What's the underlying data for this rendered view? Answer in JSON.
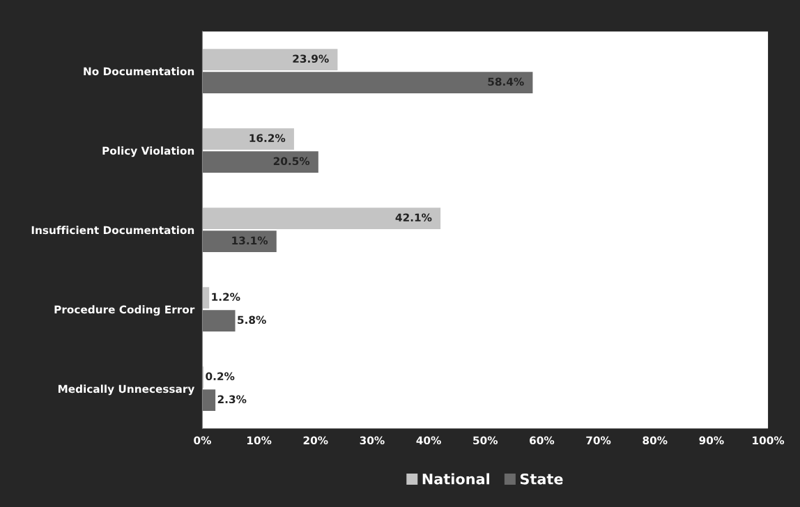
{
  "chart_data": {
    "type": "bar",
    "orientation": "horizontal",
    "categories": [
      "No Documentation",
      "Policy Violation",
      "Insufficient Documentation",
      "Procedure Coding Error",
      "Medically Unnecessary"
    ],
    "series": [
      {
        "name": "National",
        "color": "#c4c4c4",
        "values": [
          23.9,
          16.2,
          42.1,
          1.2,
          0.2
        ],
        "value_labels": [
          "23.9%",
          "16.2%",
          "42.1%",
          "1.2%",
          "0.2%"
        ]
      },
      {
        "name": "State",
        "color": "#6a6a6a",
        "values": [
          58.4,
          20.5,
          13.1,
          5.8,
          2.3
        ],
        "value_labels": [
          "58.4%",
          "20.5%",
          "13.1%",
          "5.8%",
          "2.3%"
        ]
      }
    ],
    "xlim": [
      0,
      100
    ],
    "xticks": [
      {
        "value": 0,
        "label": "0%"
      },
      {
        "value": 10,
        "label": "10%"
      },
      {
        "value": 20,
        "label": "20%"
      },
      {
        "value": 30,
        "label": "30%"
      },
      {
        "value": 40,
        "label": "40%"
      },
      {
        "value": 50,
        "label": "50%"
      },
      {
        "value": 60,
        "label": "60%"
      },
      {
        "value": 70,
        "label": "70%"
      },
      {
        "value": 80,
        "label": "80%"
      },
      {
        "value": 90,
        "label": "90%"
      },
      {
        "value": 100,
        "label": "100%"
      }
    ],
    "grid": false,
    "legend": "bottom"
  }
}
